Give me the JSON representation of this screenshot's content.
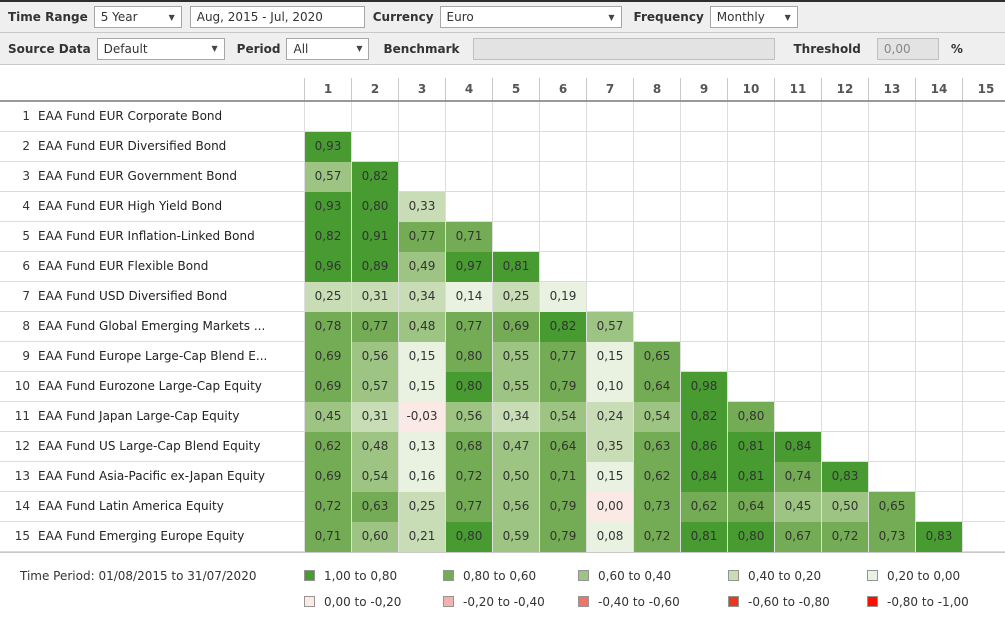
{
  "toolbar_row1": {
    "time_range_label": "Time Range",
    "time_range_value": "5 Year",
    "date_range_value": "Aug, 2015 - Jul, 2020",
    "currency_label": "Currency",
    "currency_value": "Euro",
    "frequency_label": "Frequency",
    "frequency_value": "Monthly"
  },
  "toolbar_row2": {
    "source_data_label": "Source Data",
    "source_data_value": "Default",
    "period_label": "Period",
    "period_value": "All",
    "benchmark_label": "Benchmark",
    "benchmark_value": "",
    "threshold_label": "Threshold",
    "threshold_value": "0,00",
    "threshold_unit": "%"
  },
  "colors": {
    "g5": "#489b31",
    "g4": "#74ab55",
    "g3": "#9dc482",
    "g2": "#c8ddb6",
    "g1": "#e9f1e0",
    "r1": "#fbe9e5",
    "r2": "#f3b3aa",
    "r3": "#ee7465",
    "r4": "#e83920",
    "r5": "#fa1000"
  },
  "matrix": {
    "column_headers": [
      "1",
      "2",
      "3",
      "4",
      "5",
      "6",
      "7",
      "8",
      "9",
      "10",
      "11",
      "12",
      "13",
      "14",
      "15"
    ],
    "rows": [
      {
        "num": "1",
        "name": "EAA Fund EUR Corporate Bond",
        "cells": []
      },
      {
        "num": "2",
        "name": "EAA Fund EUR Diversified Bond",
        "cells": [
          {
            "v": "0,93",
            "c": "g5"
          }
        ]
      },
      {
        "num": "3",
        "name": "EAA Fund EUR Government Bond",
        "cells": [
          {
            "v": "0,57",
            "c": "g3"
          },
          {
            "v": "0,82",
            "c": "g5"
          }
        ]
      },
      {
        "num": "4",
        "name": "EAA Fund EUR High Yield Bond",
        "cells": [
          {
            "v": "0,93",
            "c": "g5"
          },
          {
            "v": "0,80",
            "c": "g5"
          },
          {
            "v": "0,33",
            "c": "g2"
          }
        ]
      },
      {
        "num": "5",
        "name": "EAA Fund EUR Inflation-Linked Bond",
        "cells": [
          {
            "v": "0,82",
            "c": "g5"
          },
          {
            "v": "0,91",
            "c": "g5"
          },
          {
            "v": "0,77",
            "c": "g4"
          },
          {
            "v": "0,71",
            "c": "g4"
          }
        ]
      },
      {
        "num": "6",
        "name": "EAA Fund EUR Flexible Bond",
        "cells": [
          {
            "v": "0,96",
            "c": "g5"
          },
          {
            "v": "0,89",
            "c": "g5"
          },
          {
            "v": "0,49",
            "c": "g3"
          },
          {
            "v": "0,97",
            "c": "g5"
          },
          {
            "v": "0,81",
            "c": "g5"
          }
        ]
      },
      {
        "num": "7",
        "name": "EAA Fund USD Diversified Bond",
        "cells": [
          {
            "v": "0,25",
            "c": "g2"
          },
          {
            "v": "0,31",
            "c": "g2"
          },
          {
            "v": "0,34",
            "c": "g2"
          },
          {
            "v": "0,14",
            "c": "g1"
          },
          {
            "v": "0,25",
            "c": "g2"
          },
          {
            "v": "0,19",
            "c": "g1"
          }
        ]
      },
      {
        "num": "8",
        "name": "EAA Fund Global Emerging Markets ...",
        "cells": [
          {
            "v": "0,78",
            "c": "g4"
          },
          {
            "v": "0,77",
            "c": "g4"
          },
          {
            "v": "0,48",
            "c": "g3"
          },
          {
            "v": "0,77",
            "c": "g4"
          },
          {
            "v": "0,69",
            "c": "g4"
          },
          {
            "v": "0,82",
            "c": "g5"
          },
          {
            "v": "0,57",
            "c": "g3"
          }
        ]
      },
      {
        "num": "9",
        "name": "EAA Fund Europe Large-Cap Blend E...",
        "cells": [
          {
            "v": "0,69",
            "c": "g4"
          },
          {
            "v": "0,56",
            "c": "g3"
          },
          {
            "v": "0,15",
            "c": "g1"
          },
          {
            "v": "0,80",
            "c": "g4"
          },
          {
            "v": "0,55",
            "c": "g3"
          },
          {
            "v": "0,77",
            "c": "g4"
          },
          {
            "v": "0,15",
            "c": "g1"
          },
          {
            "v": "0,65",
            "c": "g4"
          }
        ]
      },
      {
        "num": "10",
        "name": "EAA Fund Eurozone Large-Cap Equity",
        "cells": [
          {
            "v": "0,69",
            "c": "g4"
          },
          {
            "v": "0,57",
            "c": "g3"
          },
          {
            "v": "0,15",
            "c": "g1"
          },
          {
            "v": "0,80",
            "c": "g5"
          },
          {
            "v": "0,55",
            "c": "g3"
          },
          {
            "v": "0,79",
            "c": "g4"
          },
          {
            "v": "0,10",
            "c": "g1"
          },
          {
            "v": "0,64",
            "c": "g4"
          },
          {
            "v": "0,98",
            "c": "g5"
          }
        ]
      },
      {
        "num": "11",
        "name": "EAA Fund Japan Large-Cap Equity",
        "cells": [
          {
            "v": "0,45",
            "c": "g3"
          },
          {
            "v": "0,31",
            "c": "g2"
          },
          {
            "v": "-0,03",
            "c": "r1"
          },
          {
            "v": "0,56",
            "c": "g3"
          },
          {
            "v": "0,34",
            "c": "g2"
          },
          {
            "v": "0,54",
            "c": "g3"
          },
          {
            "v": "0,24",
            "c": "g2"
          },
          {
            "v": "0,54",
            "c": "g3"
          },
          {
            "v": "0,82",
            "c": "g5"
          },
          {
            "v": "0,80",
            "c": "g4"
          }
        ]
      },
      {
        "num": "12",
        "name": "EAA Fund US Large-Cap Blend Equity",
        "cells": [
          {
            "v": "0,62",
            "c": "g4"
          },
          {
            "v": "0,48",
            "c": "g3"
          },
          {
            "v": "0,13",
            "c": "g1"
          },
          {
            "v": "0,68",
            "c": "g4"
          },
          {
            "v": "0,47",
            "c": "g3"
          },
          {
            "v": "0,64",
            "c": "g4"
          },
          {
            "v": "0,35",
            "c": "g2"
          },
          {
            "v": "0,63",
            "c": "g4"
          },
          {
            "v": "0,86",
            "c": "g5"
          },
          {
            "v": "0,81",
            "c": "g5"
          },
          {
            "v": "0,84",
            "c": "g5"
          }
        ]
      },
      {
        "num": "13",
        "name": "EAA Fund Asia-Pacific ex-Japan Equity",
        "cells": [
          {
            "v": "0,69",
            "c": "g4"
          },
          {
            "v": "0,54",
            "c": "g3"
          },
          {
            "v": "0,16",
            "c": "g1"
          },
          {
            "v": "0,72",
            "c": "g4"
          },
          {
            "v": "0,50",
            "c": "g3"
          },
          {
            "v": "0,71",
            "c": "g4"
          },
          {
            "v": "0,15",
            "c": "g1"
          },
          {
            "v": "0,62",
            "c": "g4"
          },
          {
            "v": "0,84",
            "c": "g5"
          },
          {
            "v": "0,81",
            "c": "g5"
          },
          {
            "v": "0,74",
            "c": "g4"
          },
          {
            "v": "0,83",
            "c": "g5"
          }
        ]
      },
      {
        "num": "14",
        "name": "EAA Fund Latin America Equity",
        "cells": [
          {
            "v": "0,72",
            "c": "g4"
          },
          {
            "v": "0,63",
            "c": "g4"
          },
          {
            "v": "0,25",
            "c": "g2"
          },
          {
            "v": "0,77",
            "c": "g4"
          },
          {
            "v": "0,56",
            "c": "g3"
          },
          {
            "v": "0,79",
            "c": "g4"
          },
          {
            "v": "0,00",
            "c": "r1"
          },
          {
            "v": "0,73",
            "c": "g4"
          },
          {
            "v": "0,62",
            "c": "g4"
          },
          {
            "v": "0,64",
            "c": "g4"
          },
          {
            "v": "0,45",
            "c": "g3"
          },
          {
            "v": "0,50",
            "c": "g3"
          },
          {
            "v": "0,65",
            "c": "g4"
          }
        ]
      },
      {
        "num": "15",
        "name": "EAA Fund Emerging Europe Equity",
        "cells": [
          {
            "v": "0,71",
            "c": "g4"
          },
          {
            "v": "0,60",
            "c": "g3"
          },
          {
            "v": "0,21",
            "c": "g2"
          },
          {
            "v": "0,80",
            "c": "g5"
          },
          {
            "v": "0,59",
            "c": "g3"
          },
          {
            "v": "0,79",
            "c": "g4"
          },
          {
            "v": "0,08",
            "c": "g1"
          },
          {
            "v": "0,72",
            "c": "g4"
          },
          {
            "v": "0,81",
            "c": "g5"
          },
          {
            "v": "0,80",
            "c": "g5"
          },
          {
            "v": "0,67",
            "c": "g4"
          },
          {
            "v": "0,72",
            "c": "g4"
          },
          {
            "v": "0,73",
            "c": "g4"
          },
          {
            "v": "0,83",
            "c": "g5"
          }
        ]
      }
    ]
  },
  "legend": {
    "time_period": "Time Period: 01/08/2015 to 31/07/2020",
    "row1": [
      {
        "label": "1,00 to 0,80",
        "c": "g5"
      },
      {
        "label": "0,80 to 0,60",
        "c": "g4"
      },
      {
        "label": "0,60 to 0,40",
        "c": "g3"
      },
      {
        "label": "0,40 to 0,20",
        "c": "g2"
      },
      {
        "label": "0,20 to 0,00",
        "c": "g1"
      }
    ],
    "row2": [
      {
        "label": "0,00 to -0,20",
        "c": "r1"
      },
      {
        "label": "-0,20 to -0,40",
        "c": "r2"
      },
      {
        "label": "-0,40 to -0,60",
        "c": "r3"
      },
      {
        "label": "-0,60 to -0,80",
        "c": "r4"
      },
      {
        "label": "-0,80 to -1,00",
        "c": "r5"
      }
    ]
  }
}
